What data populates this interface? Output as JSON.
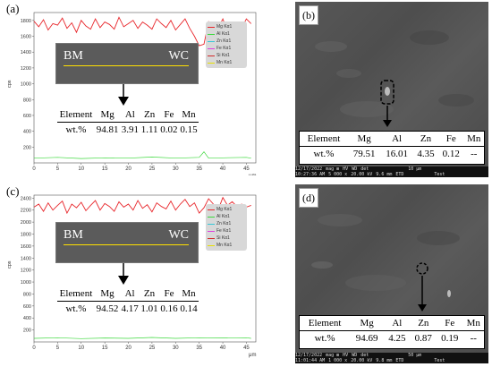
{
  "panels": {
    "a": {
      "label": "(a)",
      "y_axis_label": "cps",
      "x_axis_label": "μm",
      "y_ticks": [
        "1800",
        "1600",
        "1400",
        "1200",
        "1000",
        "800",
        "600",
        "400",
        "200"
      ],
      "x_ticks": [
        "0",
        "5",
        "10",
        "15",
        "20",
        "25",
        "30",
        "35",
        "40",
        "45"
      ],
      "inset": {
        "left_label": "BM",
        "right_label": "WC"
      },
      "legend": [
        "Mg Kα1",
        "Al Kα1",
        "Zn Kα1",
        "Fe Kα1",
        "Si Kα1",
        "Mn Kα1"
      ],
      "table": {
        "headers": [
          "Element",
          "Mg",
          "Al",
          "Zn",
          "Fe",
          "Mn"
        ],
        "row": [
          "wt.%",
          "94.81",
          "3.91",
          "1.11",
          "0.02",
          "0.15"
        ]
      }
    },
    "b": {
      "label": "(b)",
      "table": {
        "headers": [
          "Element",
          "Mg",
          "Al",
          "Zn",
          "Fe",
          "Mn"
        ],
        "row": [
          "wt.%",
          "79.51",
          "16.01",
          "4.35",
          "0.12",
          "--"
        ]
      },
      "info": [
        "12/17/2022",
        "mag ⊞",
        "HV",
        "WD",
        "det",
        "10 μm",
        "10:27:36 AM",
        "5 000 x",
        "20.00 kV",
        "9.6 mm",
        "ETD",
        "Test"
      ]
    },
    "c": {
      "label": "(c)",
      "y_axis_label": "cps",
      "x_axis_label": "μm",
      "y_ticks": [
        "2400",
        "2200",
        "2000",
        "1800",
        "1600",
        "1400",
        "1200",
        "1000",
        "800",
        "600",
        "400",
        "200"
      ],
      "x_ticks": [
        "0",
        "5",
        "10",
        "15",
        "20",
        "25",
        "30",
        "35",
        "40",
        "45"
      ],
      "inset": {
        "left_label": "BM",
        "right_label": "WC"
      },
      "legend": [
        "Mg Kα1",
        "Al Kα1",
        "Zn Kα1",
        "Fe Kα1",
        "Si Kα1",
        "Mn Kα1"
      ],
      "table": {
        "headers": [
          "Element",
          "Mg",
          "Al",
          "Zn",
          "Fe",
          "Mn"
        ],
        "row": [
          "wt.%",
          "94.52",
          "4.17",
          "1.01",
          "0.16",
          "0.14"
        ]
      }
    },
    "d": {
      "label": "(d)",
      "table": {
        "headers": [
          "Element",
          "Mg",
          "Al",
          "Zn",
          "Fe",
          "Mn"
        ],
        "row": [
          "wt.%",
          "94.69",
          "4.25",
          "0.87",
          "0.19",
          "--"
        ]
      },
      "info": [
        "12/17/2022",
        "mag ⊞",
        "HV",
        "WD",
        "det",
        "50 μm",
        "11:01:44 AM",
        "1 000 x",
        "20.00 kV",
        "9.8 mm",
        "ETD",
        "Test"
      ]
    }
  },
  "colors": {
    "mg": "#e8262b",
    "al": "#3dd93d",
    "zn": "#35c8d8",
    "fe": "#e040e0",
    "si": "#d22a2a",
    "mn": "#e8e000"
  },
  "chart_data": [
    {
      "type": "line",
      "xlabel": "μm",
      "ylabel": "cps",
      "xlim": [
        0,
        47
      ],
      "ylim": [
        0,
        1900
      ],
      "series": [
        {
          "name": "Mg Kα1",
          "x": [
            0,
            1,
            2,
            3,
            4,
            5,
            6,
            7,
            8,
            9,
            10,
            11,
            12,
            13,
            14,
            15,
            16,
            17,
            18,
            19,
            20,
            21,
            22,
            23,
            24,
            25,
            26,
            27,
            28,
            29,
            30,
            31,
            32,
            33,
            34,
            35,
            36,
            37,
            38,
            39,
            40,
            41,
            42,
            43,
            44,
            45,
            46
          ],
          "values": [
            1790,
            1720,
            1810,
            1680,
            1760,
            1740,
            1830,
            1700,
            1770,
            1650,
            1800,
            1730,
            1690,
            1820,
            1710,
            1780,
            1750,
            1690,
            1840,
            1720,
            1760,
            1800,
            1700,
            1780,
            1740,
            1690,
            1820,
            1760,
            1710,
            1800,
            1680,
            1750,
            1820,
            1700,
            1600,
            1480,
            1500,
            1780,
            1620,
            1700,
            1820,
            1660,
            1750,
            1780,
            1700,
            1820,
            1760
          ]
        },
        {
          "name": "Al Kα1",
          "x": [
            0,
            5,
            10,
            15,
            20,
            25,
            30,
            35,
            36,
            37,
            40,
            45,
            46
          ],
          "values": [
            60,
            70,
            55,
            65,
            60,
            75,
            60,
            70,
            140,
            60,
            65,
            70,
            60
          ]
        }
      ]
    },
    {
      "type": "line",
      "xlabel": "μm",
      "ylabel": "cps",
      "xlim": [
        0,
        47
      ],
      "ylim": [
        0,
        2450
      ],
      "series": [
        {
          "name": "Mg Kα1",
          "x": [
            0,
            1,
            2,
            3,
            4,
            5,
            6,
            7,
            8,
            9,
            10,
            11,
            12,
            13,
            14,
            15,
            16,
            17,
            18,
            19,
            20,
            21,
            22,
            23,
            24,
            25,
            26,
            27,
            28,
            29,
            30,
            31,
            32,
            33,
            34,
            35,
            36,
            37,
            38,
            39,
            40,
            41,
            42,
            43,
            44,
            45,
            46
          ],
          "values": [
            2250,
            2300,
            2180,
            2320,
            2200,
            2280,
            2350,
            2150,
            2300,
            2240,
            2330,
            2190,
            2280,
            2360,
            2200,
            2310,
            2260,
            2180,
            2340,
            2250,
            2300,
            2200,
            2360,
            2230,
            2290,
            2170,
            2320,
            2260,
            2220,
            2350,
            2200,
            2300,
            2380,
            2260,
            2320,
            2150,
            2240,
            2390,
            2300,
            2200,
            2410,
            2280,
            2340,
            2260,
            2300,
            2250,
            2280
          ]
        },
        {
          "name": "Al Kα1",
          "x": [
            0,
            5,
            10,
            15,
            20,
            25,
            30,
            35,
            40,
            45,
            46
          ],
          "values": [
            60,
            70,
            55,
            65,
            60,
            75,
            60,
            70,
            65,
            70,
            60
          ]
        }
      ]
    }
  ]
}
